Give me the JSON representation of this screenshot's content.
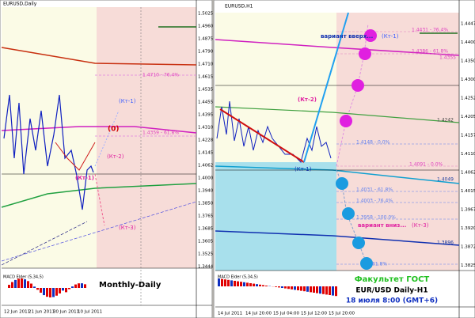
{
  "left_window": {
    "title": "EURUSD,Daily",
    "price_axis": [
      "1.5025",
      "1.4960",
      "1.4875",
      "1.4790",
      "1.4710",
      "1.4615",
      "1.4535",
      "1.4455",
      "1.4395",
      "1.4310",
      "1.4228",
      "1.4145",
      "1.4062",
      "1.4000",
      "1.3940",
      "1.3850",
      "1.3765",
      "1.3685",
      "1.3605",
      "1.3525",
      "1.3444"
    ],
    "levels": [
      "1.4710 - 76.4%",
      "1.4359 - 61.8%"
    ],
    "annotations": [
      "(Кт-1)",
      "(0)",
      "(Кт-2)",
      "(Кт-1)",
      "(Кт-3)"
    ],
    "macd_label": "MACD Elder (5,34,5)",
    "caption": "Monthly-Daily",
    "dates": [
      "12 Jun 2011",
      "21 Jun 2011",
      "30 Jun 2011",
      "10 Jul 2011"
    ]
  },
  "right_window": {
    "title": "EURUSD,H1",
    "price_axis": [
      "1.4447",
      "1.4400",
      "1.4350",
      "1.4300",
      "1.4252",
      "1.4205",
      "1.4157",
      "1.4110",
      "1.4062",
      "1.4015",
      "1.3967",
      "1.3920",
      "1.3872",
      "1.3825"
    ],
    "levels": [
      "1.4431 - 76.4%",
      "1.4386 - 61.8%",
      "1.4355",
      "1.4242",
      "1.4148 - 0.0%",
      "1.4091 - 0.0%",
      "1.4049",
      "1.4031 - 61.8%",
      "1.4003 - 76.4%",
      "1.3958 - 100.0%",
      "1.3896",
      "61.8%"
    ],
    "annotations": [
      "вариант вверх...",
      "(Кт-1)",
      "(Кт-2)",
      "(Кт-1)",
      "вариант вниз...",
      "(Кт-3)"
    ],
    "macd_label": "MACD Elder (5,34,5)",
    "caption": [
      "Факультет ГОСТ",
      "EUR/USD Daily-H1",
      "18 июля 8:00 (GMT+6)"
    ],
    "dates": [
      "14 Jul 2011",
      "14 Jul 20:00",
      "15 Jul 04:00",
      "15 Jul 12:00",
      "15 Jul 20:00"
    ]
  }
}
